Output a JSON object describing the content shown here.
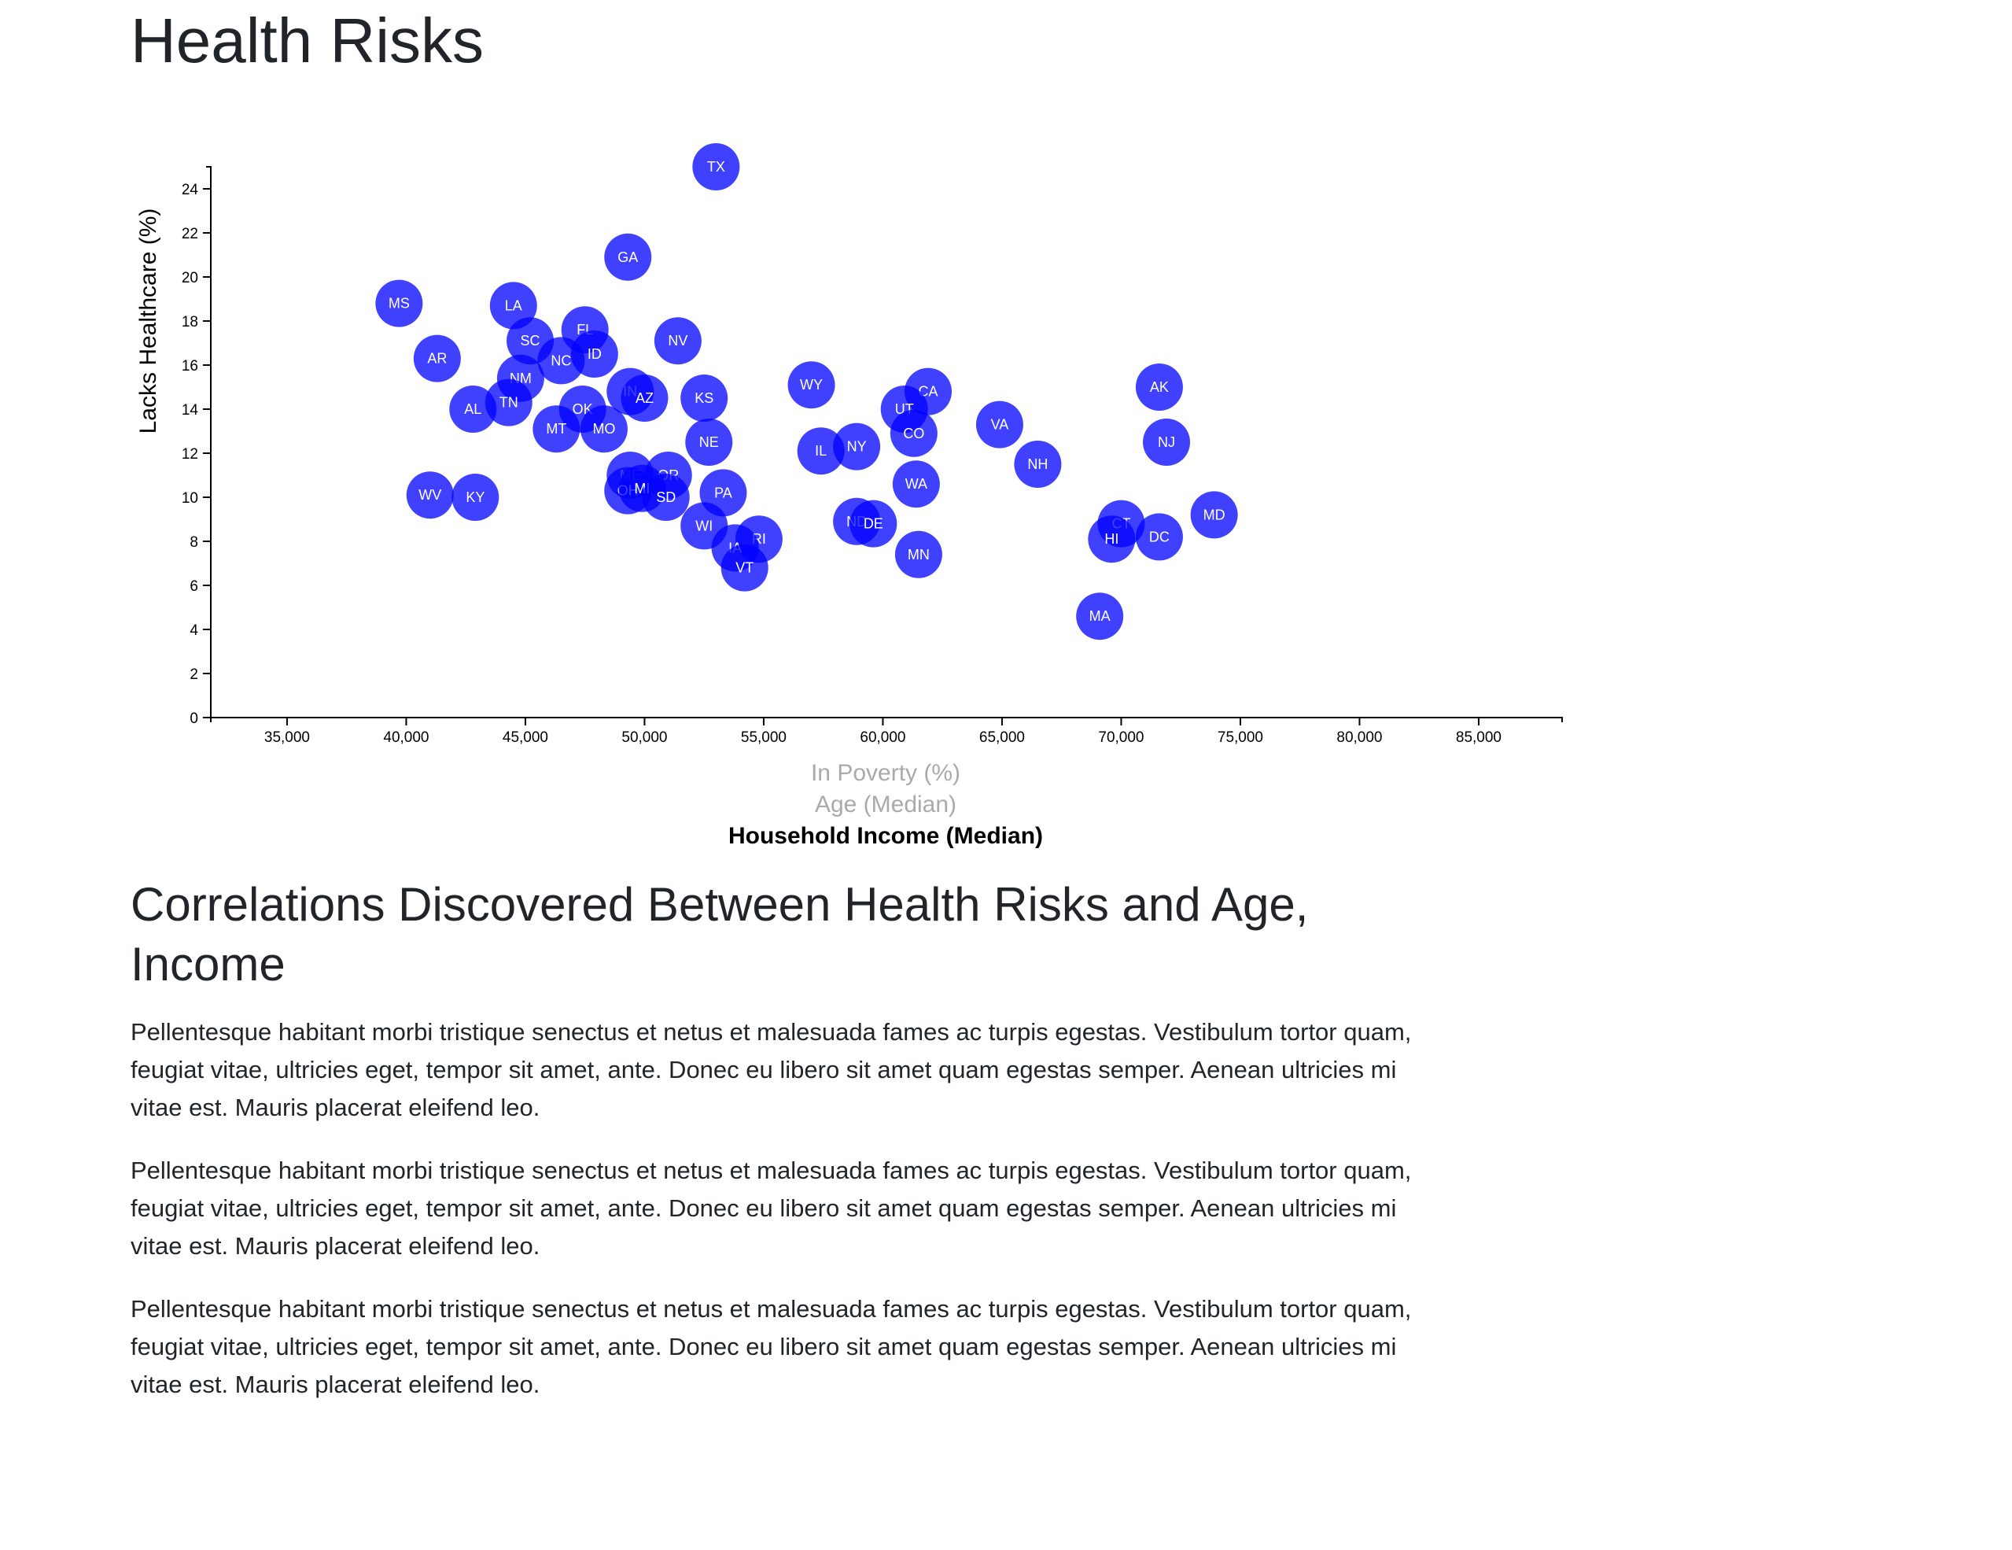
{
  "page": {
    "title": "Health Risks"
  },
  "article": {
    "heading": "Correlations Discovered Between Health Risks and Age, Income",
    "paragraphs": [
      "Pellentesque habitant morbi tristique senectus et netus et malesuada fames ac turpis egestas. Vestibulum tortor quam, feugiat vitae, ultricies eget, tempor sit amet, ante. Donec eu libero sit amet quam egestas semper. Aenean ultricies mi vitae est. Mauris placerat eleifend leo.",
      "Pellentesque habitant morbi tristique senectus et netus et malesuada fames ac turpis egestas. Vestibulum tortor quam, feugiat vitae, ultricies eget, tempor sit amet, ante. Donec eu libero sit amet quam egestas semper. Aenean ultricies mi vitae est. Mauris placerat eleifend leo.",
      "Pellentesque habitant morbi tristique senectus et netus et malesuada fames ac turpis egestas. Vestibulum tortor quam, feugiat vitae, ultricies eget, tempor sit amet, ante. Donec eu libero sit amet quam egestas semper. Aenean ultricies mi vitae est. Mauris placerat eleifend leo."
    ]
  },
  "chart_data": {
    "type": "scatter",
    "title": "",
    "ylabel": "Lacks Healthcare (%)",
    "xlabels": [
      {
        "label": "In Poverty (%)",
        "active": false
      },
      {
        "label": "Age (Median)",
        "active": false
      },
      {
        "label": "Household Income (Median)",
        "active": true
      }
    ],
    "xlim": [
      31800,
      88500
    ],
    "ylim": [
      0,
      25
    ],
    "xticks": [
      35000,
      40000,
      45000,
      50000,
      55000,
      60000,
      65000,
      70000,
      75000,
      80000,
      85000
    ],
    "xtick_labels": [
      "35,000",
      "40,000",
      "45,000",
      "50,000",
      "55,000",
      "60,000",
      "65,000",
      "70,000",
      "75,000",
      "80,000",
      "85,000"
    ],
    "yticks": [
      0,
      2,
      4,
      6,
      8,
      10,
      12,
      14,
      16,
      18,
      20,
      22,
      24
    ],
    "ytick_labels": [
      "0",
      "2",
      "4",
      "6",
      "8",
      "10",
      "12",
      "14",
      "16",
      "18",
      "20",
      "22",
      "24"
    ],
    "grid": false,
    "marker_color": "#0000ff",
    "points": [
      {
        "label": "TX",
        "x": 53000,
        "y": 25.0
      },
      {
        "label": "GA",
        "x": 49300,
        "y": 20.9
      },
      {
        "label": "MS",
        "x": 39700,
        "y": 18.8
      },
      {
        "label": "LA",
        "x": 44500,
        "y": 18.7
      },
      {
        "label": "FL",
        "x": 47500,
        "y": 17.6
      },
      {
        "label": "SC",
        "x": 45200,
        "y": 17.1
      },
      {
        "label": "NV",
        "x": 51400,
        "y": 17.1
      },
      {
        "label": "ID",
        "x": 47900,
        "y": 16.5
      },
      {
        "label": "NC",
        "x": 46500,
        "y": 16.2
      },
      {
        "label": "AR",
        "x": 41300,
        "y": 16.3
      },
      {
        "label": "NM",
        "x": 44800,
        "y": 15.4
      },
      {
        "label": "WY",
        "x": 57000,
        "y": 15.1
      },
      {
        "label": "AK",
        "x": 71600,
        "y": 15.0
      },
      {
        "label": "IN",
        "x": 49400,
        "y": 14.8
      },
      {
        "label": "CA",
        "x": 61900,
        "y": 14.8
      },
      {
        "label": "AZ",
        "x": 50000,
        "y": 14.5
      },
      {
        "label": "KS",
        "x": 52500,
        "y": 14.5
      },
      {
        "label": "TN",
        "x": 44300,
        "y": 14.3
      },
      {
        "label": "AL",
        "x": 42800,
        "y": 14.0
      },
      {
        "label": "OK",
        "x": 47400,
        "y": 14.0
      },
      {
        "label": "UT",
        "x": 60900,
        "y": 14.0
      },
      {
        "label": "VA",
        "x": 64900,
        "y": 13.3
      },
      {
        "label": "MT",
        "x": 46300,
        "y": 13.1
      },
      {
        "label": "MO",
        "x": 48300,
        "y": 13.1
      },
      {
        "label": "CO",
        "x": 61300,
        "y": 12.9
      },
      {
        "label": "NJ",
        "x": 71900,
        "y": 12.5
      },
      {
        "label": "NE",
        "x": 52700,
        "y": 12.5
      },
      {
        "label": "NY",
        "x": 58900,
        "y": 12.3
      },
      {
        "label": "IL",
        "x": 57400,
        "y": 12.1
      },
      {
        "label": "NH",
        "x": 66500,
        "y": 11.5
      },
      {
        "label": "ME",
        "x": 49400,
        "y": 11.0
      },
      {
        "label": "OR",
        "x": 51000,
        "y": 11.0
      },
      {
        "label": "WA",
        "x": 61400,
        "y": 10.6
      },
      {
        "label": "OH",
        "x": 49300,
        "y": 10.3
      },
      {
        "label": "MI",
        "x": 49900,
        "y": 10.4
      },
      {
        "label": "PA",
        "x": 53300,
        "y": 10.2
      },
      {
        "label": "WV",
        "x": 41000,
        "y": 10.1
      },
      {
        "label": "KY",
        "x": 42900,
        "y": 10.0
      },
      {
        "label": "SD",
        "x": 50900,
        "y": 10.0
      },
      {
        "label": "MD",
        "x": 73900,
        "y": 9.2
      },
      {
        "label": "ND",
        "x": 58900,
        "y": 8.9
      },
      {
        "label": "DE",
        "x": 59600,
        "y": 8.8
      },
      {
        "label": "CT",
        "x": 70000,
        "y": 8.8
      },
      {
        "label": "WI",
        "x": 52500,
        "y": 8.7
      },
      {
        "label": "DC",
        "x": 71600,
        "y": 8.2
      },
      {
        "label": "HI",
        "x": 69600,
        "y": 8.1
      },
      {
        "label": "RI",
        "x": 54800,
        "y": 8.1
      },
      {
        "label": "IA",
        "x": 53800,
        "y": 7.7
      },
      {
        "label": "MN",
        "x": 61500,
        "y": 7.4
      },
      {
        "label": "VT",
        "x": 54200,
        "y": 6.8
      },
      {
        "label": "MA",
        "x": 69100,
        "y": 4.6
      }
    ]
  }
}
